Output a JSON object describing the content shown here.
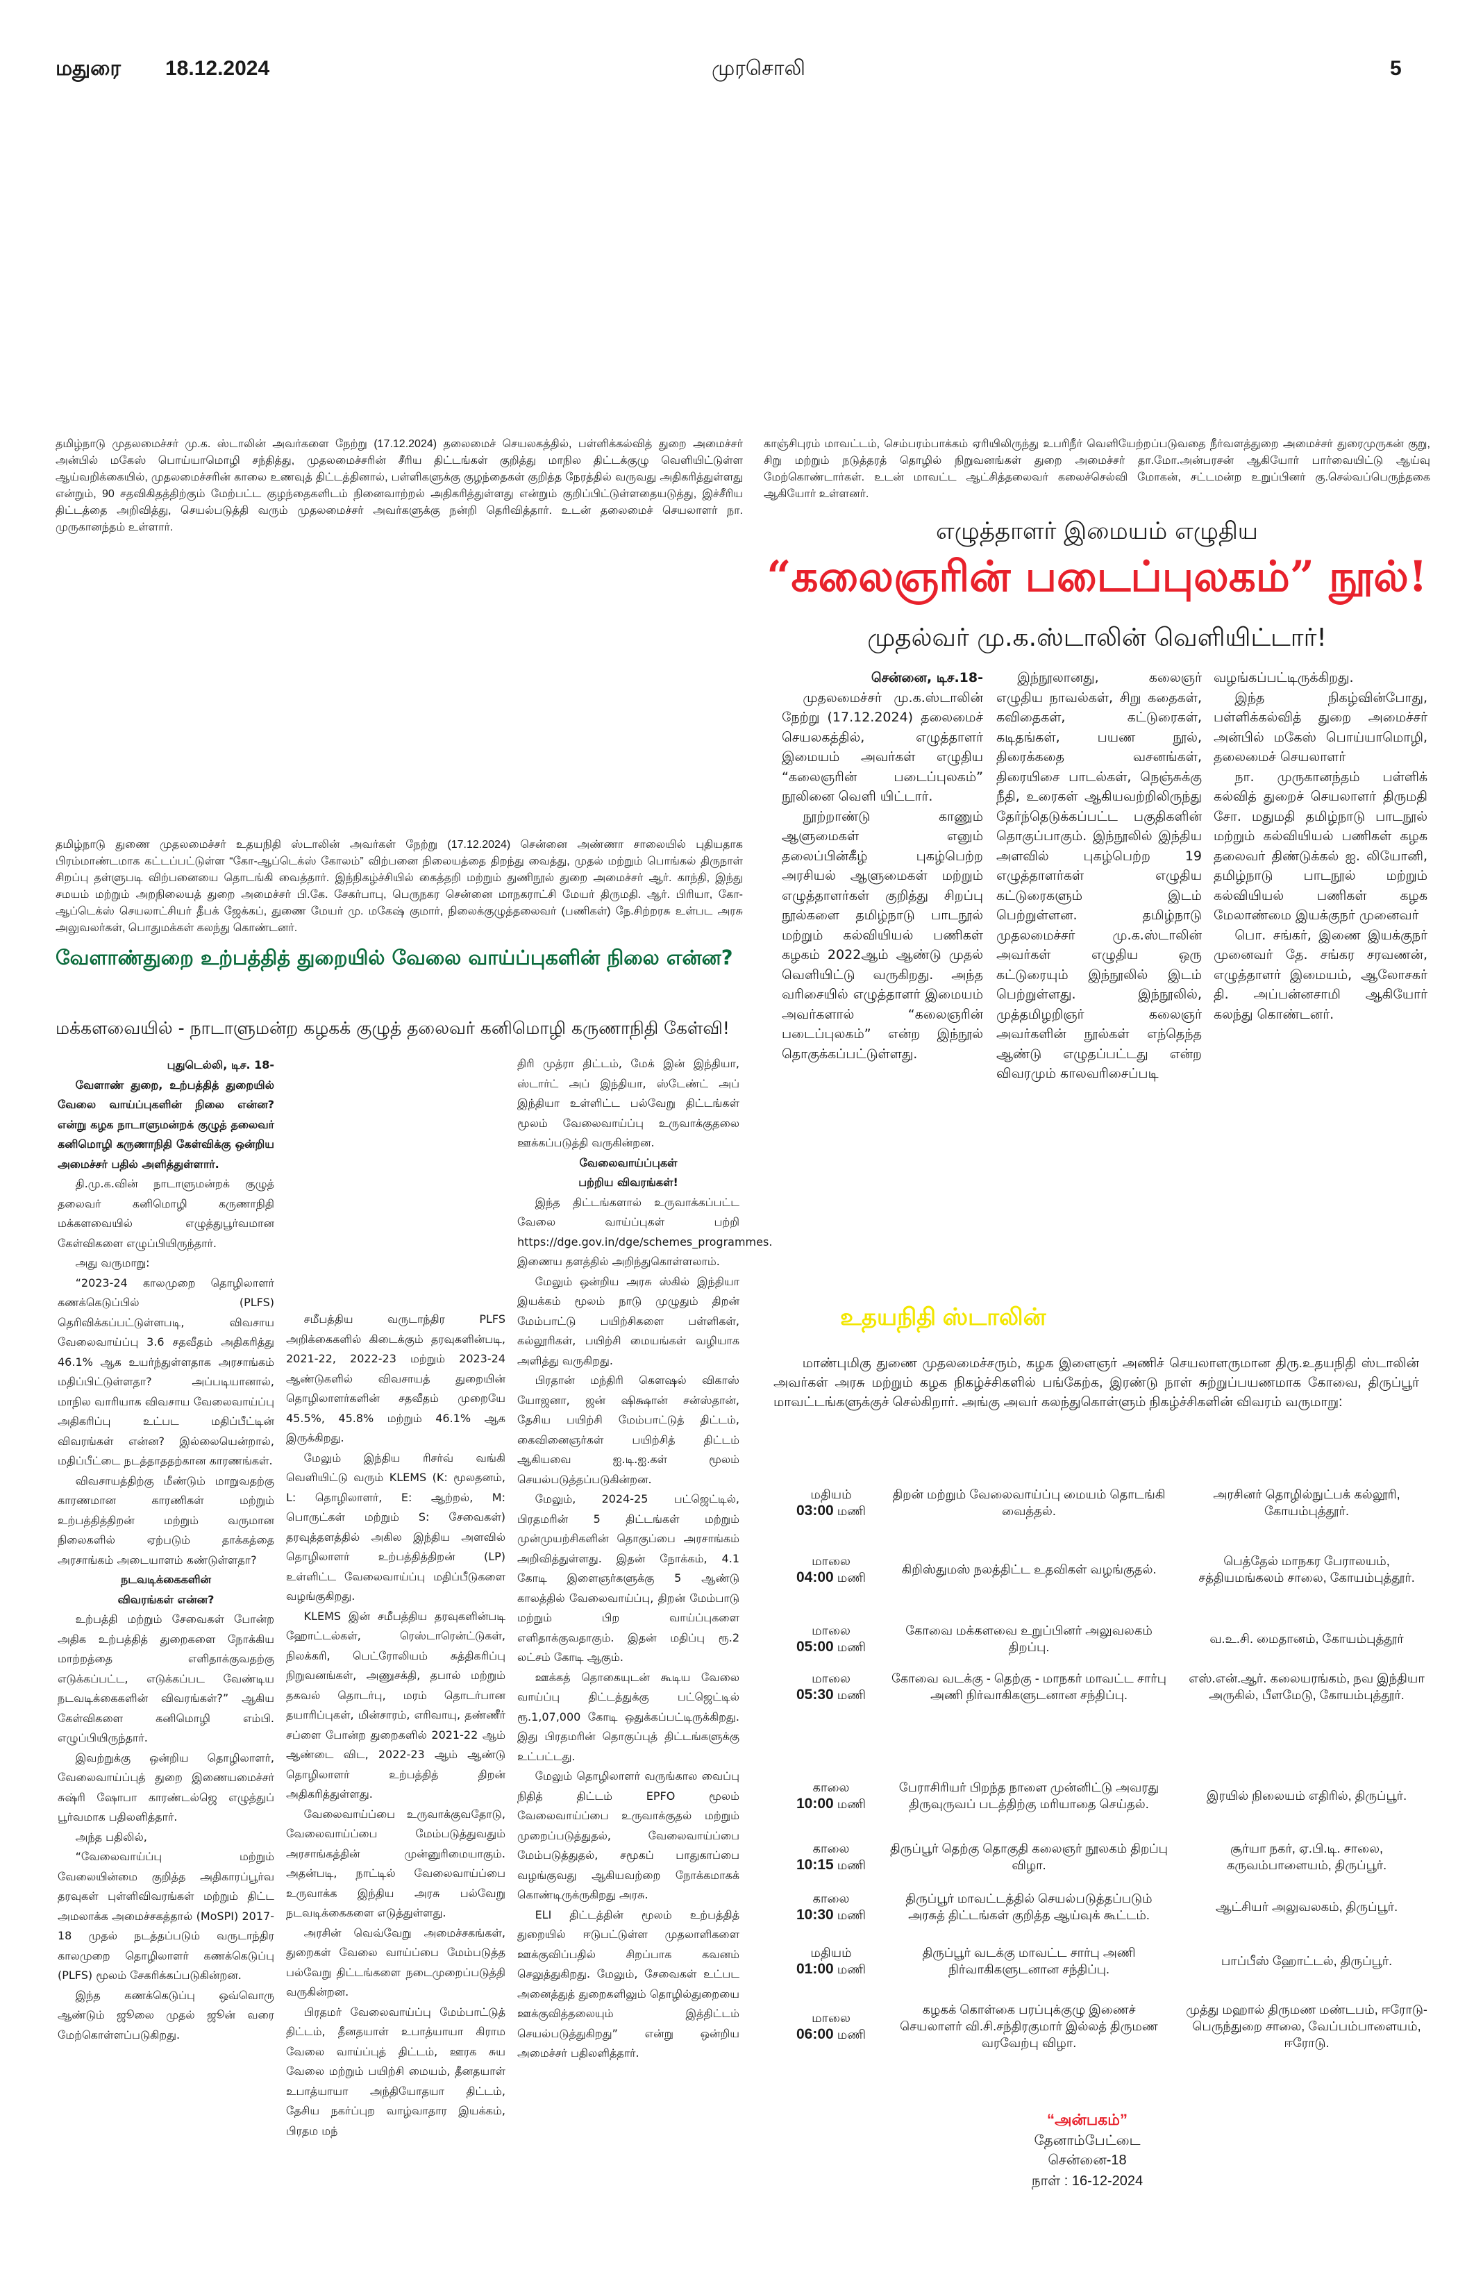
{
  "header": {
    "city": "மதுரை",
    "date": "18.12.2024",
    "masthead": "முரசொலி",
    "page_number": "5"
  },
  "colors": {
    "green_headline": "#0b6b3c",
    "red_headline": "#e8212b",
    "yellow_heading": "#f2e600"
  },
  "captions": {
    "education_minister": "தமிழ்நாடு முதலமைச்சர் மு.க. ஸ்டாலின் அவர்களை நேற்று (17.12.2024) தலைமைச் செயலகத்தில், பள்ளிக்கல்வித் துறை அமைச்சர் அன்பில் மகேஸ் பொய்யாமொழி சந்தித்து, முதலமைச்சரின் சீரிய திட்டங்கள் குறித்து மாநில திட்டக்குழு வெளியிட்டுள்ள ஆய்வறிக்கையில், முதலமைச்சரின் காலை உணவுத் திட்டத்தினால், பள்ளிகளுக்கு குழந்தைகள் குறித்த நேரத்தில் வருவது அதிகரித்துள்ளது என்றும், 90 சதவிகிதத்திற்கும் மேற்பட்ட குழந்தைகளிடம் நினைவாற்றல் அதிகரித்துள்ளது என்றும் குறிப்பிட்டுள்ளதையடுத்து, இச்சீரிய திட்டத்தை அறிவித்து, செயல்படுத்தி வரும் முதலமைச்சர் அவர்களுக்கு நன்றி தெரிவித்தார். உடன் தலைமைச் செயலாளர் நா. முருகானந்தம் உள்ளார்.",
    "chembarambakkam": "காஞ்சிபுரம் மாவட்டம், செம்பரம்பாக்கம் ஏரியிலிருந்து உபரிநீர் வெளியேற்றப்படுவதை நீர்வளத்துறை அமைச்சர் துரைமுருகன் குறு, சிறு மற்றும் நடுத்தரத் தொழில் நிறுவனங்கள் துறை அமைச்சர் தா.மோ.அன்பரசன் ஆகியோர் பார்வையிட்டு ஆய்வு மேற்கொண்டார்கள். உடன் மாவட்ட ஆட்சித்தலைவர் கலைச்செல்வி மோகன், சட்டமன்ற உறுப்பினர் கு.செல்வப்பெருந்தகை ஆகியோர் உள்ளனர்.",
    "co_optex": "தமிழ்நாடு துணை முதலமைச்சர் உதயநிதி ஸ்டாலின் அவர்கள் நேற்று (17.12.2024) சென்னை அண்ணா சாலையில் புதியதாக பிரம்மாண்டமாக கட்டப்பட்டுள்ள “கோ-ஆப்டெக்ஸ் கோலம்” விற்பனை நிலையத்தை திறந்து வைத்து, முதல் மற்றும் பொங்கல் திருநாள் சிறப்பு தள்ளுபடி விற்பனையை தொடங்கி வைத்தார். இந்நிகழ்ச்சியில் கைத்தறி மற்றும் துணிநூல் துறை அமைச்சர் ஆர். காந்தி, இந்து சமயம் மற்றும் அறநிலையத் துறை அமைச்சர் பி.கே. சேகர்பாபு, பெருநகர சென்னை மாநகராட்சி மேயர் திருமதி. ஆர். பிரியா, கோ-ஆப்டெக்ஸ் செயலாட்சியர் தீபக் ஜேக்கப், துணை மேயர் மு. மகேஷ் குமார், நிலைக்குழுத்தலைவர் (பணிகள்) நே.சிற்றரசு உள்பட அரசு அலுவலர்கள், பொதுமக்கள் கலந்து கொண்டனர்."
  },
  "book_article": {
    "kicker": "எழுத்தாளர் இமையம் எழுதிய",
    "headline": "“கலைஞரின் படைப்புலகம்” நூல்!",
    "subheadline": "முதல்வர் மு.க.ஸ்டாலின் வெளியிட்டார்!",
    "dateline": "சென்னை, டிச.18-",
    "columns": [
      [
        "முதலமைச்சர் மு.க.ஸ்டாலின் நேற்று (17.12.2024) தலைமைச் செயலகத்தில், எழுத்தாளர் இமையம் அவர்கள் எழுதிய “கலைஞரின் படைப்புலகம்” நூலினை வெளி யிட்டார்.",
        "நூற்றாண்டு காணும் ஆளுமைகள் எனும் தலைப்பின்கீழ் புகழ்பெற்ற அரசியல் ஆளுமைகள் மற்றும் எழுத்தாளர்கள் குறித்து சிறப்பு நூல்களை தமிழ்நாடு பாடநூல் மற்றும் கல்வியியல் பணிகள் கழகம் 2022ஆம் ஆண்டு முதல் வெளியிட்டு வருகிறது. அந்த வரிசையில் எழுத்தாளர் இமையம் அவர்களால் “கலைஞரின் படைப்புலகம்” என்ற இந்நூல் தொகுக்கப்பட்டுள்ளது."
      ],
      [
        "இந்நூலானது, கலைஞர் எழுதிய நாவல்கள், சிறு கதைகள், கவிதைகள், கட்டுரைகள், கடிதங்கள், பயண நூல், திரைக்கதை வசனங்கள், திரையிசை பாடல்கள், நெஞ்சுக்கு நீதி, உரைகள் ஆகியவற்றிலிருந்து தேர்ந்தெடுக்கப்பட்ட பகுதிகளின் தொகுப்பாகும். இந்நூலில் இந்திய அளவில் புகழ்பெற்ற 19 எழுத்தாளர்கள் எழுதிய கட்டுரைகளும் இடம் பெற்றுள்ளன. தமிழ்நாடு முதலமைச்சர் மு.க.ஸ்டாலின் அவர்கள் எழுதிய ஒரு கட்டுரையும் இந்நூலில் இடம் பெற்றுள்ளது. இந்நூலில், முத்தமிழறிஞர் கலைஞர் அவர்களின் நூல்கள் எந்தெந்த ஆண்டு எழுதப்பட்டது என்ற விவரமும் காலவரிசைப்படி"
      ],
      [
        "வழங்கப்பட்டிருக்கிறது.",
        "இந்த நிகழ்வின்போது, பள்ளிக்கல்வித் துறை அமைச்சர் அன்பில் மகேஸ் பொய்யாமொழி, தலைமைச் செயலாளர்",
        "நா. முருகானந்தம் பள்ளிக் கல்வித் துறைச் செயலாளர் திருமதி சோ. மதுமதி தமிழ்நாடு பாடநூல் மற்றும் கல்வியியல் பணிகள் கழக தலைவர் திண்டுக்கல் ஐ. லியோனி, தமிழ்நாடு பாடநூல் மற்றும் கல்வியியல் பணிகள் கழக மேலாண்மை இயக்குநர் முனைவர்",
        "பொ. சங்கர், இணை இயக்குநர் முனைவர் தே. சங்கர சரவணன், எழுத்தாளர் இமையம், ஆலோசகர் தி. அப்பன்னசாமி ஆகியோர் கலந்து கொண்டனர்."
      ]
    ]
  },
  "employment_article": {
    "headline": "வேளாண்துறை உற்பத்தித் துறையில் வேலை வாய்ப்புகளின் நிலை என்ன?",
    "subheadline": "மக்களவையில் - நாடாளுமன்ற கழகக் குழுத் தலைவர் கனிமொழி கருணாநிதி கேள்வி!",
    "columns": [
      [
        {
          "type": "dateline",
          "text": "புதுடெல்லி, டிச. 18-"
        },
        {
          "type": "lead",
          "text": "வேளாண் துறை, உற்பத்தித் துறையில் வேலை வாய்ப்புகளின் நிலை என்ன? என்று கழக நாடாளுமன்றக் குழுத் தலைவர் கனிமொழி கருணாநிதி கேள்விக்கு ஒன்றிய அமைச்சர் பதில் அளித்துள்ளார்."
        },
        {
          "type": "p",
          "text": "தி.மு.க.வின் நாடாளுமன்றக் குழுத் தலைவர் கனிமொழி கருணாநிதி மக்களவையில் எழுத்துபூர்வமான கேள்விகளை எழுப்பியிருந்தார்."
        },
        {
          "type": "p",
          "text": "அது வருமாறு:"
        },
        {
          "type": "p",
          "text": "“2023-24 காலமுறை தொழிலாளர் கணக்கெடுப்பில் (PLFS) தெரிவிக்கப்பட்டுள்ளபடி, விவசாய வேலைவாய்ப்பு 3.6 சதவீதம் அதிகரித்து 46.1% ஆக உயர்ந்துள்ளதாக அரசாங்கம் மதிப்பிட்டுள்ளதா? அப்படியானால், மாநில வாரியாக விவசாய வேலைவாய்ப்பு அதிகரிப்பு உட்பட மதிப்பீட்டின் விவரங்கள் என்ன? இல்லையென்றால், மதிப்பீட்டை நடத்தாததற்கான காரணங்கள்."
        },
        {
          "type": "p",
          "text": "விவசாயத்திற்கு மீண்டும் மாறுவதற்கு காரணமான காரணிகள் மற்றும் உற்பத்தித்திறன் மற்றும் வருமான நிலைகளில் ஏற்படும் தாக்கத்தை அரசாங்கம் அடையாளம் கண்டுள்ளதா?"
        },
        {
          "type": "sub",
          "text": "நடவடிக்கைகளின்"
        },
        {
          "type": "sub",
          "text": "விவரங்கள் என்ன?"
        },
        {
          "type": "p",
          "text": "உற்பத்தி மற்றும் சேவைகள் போன்ற அதிக உற்பத்தித் துறைகளை நோக்கிய மாற்றத்தை எளிதாக்குவதற்கு எடுக்கப்பட்ட, எடுக்கப்பட வேண்டிய நடவடிக்கைகளின் விவரங்கள்?” ஆகிய கேள்விகளை கனிமொழி எம்பி. எழுப்பியிருந்தார்."
        },
        {
          "type": "p",
          "text": "இவற்றுக்கு ஒன்றிய தொழிலாளர், வேலைவாய்ப்புத் துறை இணையமைச்சர் சுஷ்ரி ஷோபா காரண்டல்ஜெ எழுத்துப் பூர்வமாக பதிலளித்தார்."
        },
        {
          "type": "p",
          "text": "அந்த பதிலில்,"
        },
        {
          "type": "p",
          "text": "“வேலைவாய்ப்பு மற்றும் வேலையின்மை குறித்த அதிகாரப்பூர்வ தரவுகள் புள்ளிவிவரங்கள் மற்றும் திட்ட அமலாக்க அமைச்சகத்தால் (MoSPI) 2017-18 முதல் நடத்தப்படும் வருடாந்திர காலமுறை தொழிலாளர் கணக்கெடுப்பு (PLFS) மூலம் சேகரிக்கப்படுகின்றன."
        },
        {
          "type": "p",
          "text": "இந்த கணக்கெடுப்பு ஒவ்வொரு ஆண்டும் ஜூலை முதல் ஜூன் வரை மேற்கொள்ளப்படுகிறது."
        }
      ],
      [
        {
          "type": "p",
          "text": "சமீபத்திய வருடாந்திர PLFS அறிக்கைகளில் கிடைக்கும் தரவுகளின்படி, 2021-22, 2022-23 மற்றும் 2023-24 ஆண்டுகளில் விவசாயத் துறையின் தொழிலாளர்களின் சதவீதம் முறையே 45.5%, 45.8% மற்றும் 46.1% ஆக இருக்கிறது."
        },
        {
          "type": "p",
          "text": "மேலும் இந்திய ரிசர்வ் வங்கி வெளியிட்டு வரும் KLEMS (K: மூலதனம், L: தொழிலாளர், E: ஆற்றல், M: பொருட்கள் மற்றும் S: சேவைகள்) தரவுத்தளத்தில் அகில இந்திய அளவில் தொழிலாளர் உற்பத்தித்திறன் (LP) உள்ளிட்ட வேலைவாய்ப்பு மதிப்பீடுகளை வழங்குகிறது."
        },
        {
          "type": "p",
          "text": "KLEMS இன் சமீபத்திய தரவுகளின்படி ஹோட்டல்கள், ரெஸ்டாரென்ட்டுகள், நிலக்கரி, பெட்ரோலியம் சுத்திகரிப்பு நிறுவனங்கள், அணுசக்தி, தபால் மற்றும் தகவல் தொடர்பு, மரம் தொடர்பான தயாரிப்புகள், மின்சாரம், எரிவாயு, தண்ணீர் சப்ளை போன்ற துறைகளில் 2021-22 ஆம் ஆண்டை விட, 2022-23 ஆம் ஆண்டு தொழிலாளர் உற்பத்தித் திறன் அதிகரித்துள்ளது."
        },
        {
          "type": "p",
          "text": "வேலைவாய்ப்பை உருவாக்குவதோடு, வேலைவாய்ப்பை மேம்படுத்துவதும் அரசாங்கத்தின் முன்னுரிமையாகும். அதன்படி, நாட்டில் வேலைவாய்ப்பை உருவாக்க இந்திய அரசு பல்வேறு நடவடிக்கைகளை எடுத்துள்ளது."
        },
        {
          "type": "p",
          "text": "அரசின் வெவ்வேறு அமைச்சகங்கள், துறைகள் வேலை வாய்ப்பை மேம்படுத்த பல்வேறு திட்டங்களை நடைமுறைப்படுத்தி வருகின்றன."
        },
        {
          "type": "p",
          "text": "பிரதமர் வேலைவாய்ப்பு மேம்பாட்டுத் திட்டம், தீனதயாள் உபாத்யாயா கிராம வேலை வாய்ப்புத் திட்டம், ஊரக சுய வேலை மற்றும் பயிற்சி மையம், தீனதயாள் உபாத்யாயா அந்தியோதயா திட்டம், தேசிய நகர்ப்புற வாழ்வாதார இயக்கம், பிரதம மந்"
        }
      ],
      [
        {
          "type": "cont",
          "text": "திரி முத்ரா திட்டம், மேக் இன் இந்தியா, ஸ்டார்ட் அப் இந்தியா, ஸ்டேண்ட் அப் இந்தியா உள்ளிட்ட பல்வேறு திட்டங்கள் மூலம் வேலைவாய்ப்பு உருவாக்குதலை ஊக்கப்படுத்தி வருகின்றன."
        },
        {
          "type": "sub",
          "text": "வேலைவாய்ப்புகள்"
        },
        {
          "type": "sub",
          "text": "பற்றிய விவரங்கள்!"
        },
        {
          "type": "p",
          "text": "இந்த திட்டங்களால் உருவாக்கப்பட்ட வேலை வாய்ப்புகள் பற்றி https://dge.gov.in/dge/schemes_programmes. இணைய தளத்தில் அறிந்துகொள்ளலாம்."
        },
        {
          "type": "p",
          "text": "மேலும் ஒன்றிய அரசு ஸ்கில் இந்தியா இயக்கம் மூலம் நாடு முழுதும் திறன் மேம்பாட்டு பயிற்சிகளை பள்ளிகள், கல்லூரிகள், பயிற்சி மையங்கள் வழியாக அளித்து வருகிறது."
        },
        {
          "type": "p",
          "text": "பிரதான் மந்திரி கௌஷல் விகாஸ் யோஜனா, ஜன் ஷிக்ஷான் சன்ஸ்தான், தேசிய பயிற்சி மேம்பாட்டுத் திட்டம், கைவினைஞர்கள் பயிற்சித் திட்டம் ஆகியவை ஐ.டி.ஐ.கள் மூலம் செயல்படுத்தப்படுகின்றன."
        },
        {
          "type": "p",
          "text": "மேலும், 2024-25 பட்ஜெட்டில், பிரதமரின் 5 திட்டங்கள் மற்றும் முன்முயற்சிகளின் தொகுப்பை அரசாங்கம் அறிவித்துள்ளது. இதன் நோக்கம், 4.1 கோடி இளைஞர்களுக்கு 5 ஆண்டு காலத்தில் வேலைவாய்ப்பு, திறன் மேம்பாடு மற்றும் பிற வாய்ப்புகளை எளிதாக்குவதாகும். இதன் மதிப்பு ரூ.2 லட்சம் கோடி ஆகும்."
        },
        {
          "type": "p",
          "text": "ஊக்கத் தொகையுடன் கூடிய வேலை வாய்ப்பு திட்டத்துக்கு பட்ஜெட்டில் ரூ.1,07,000 கோடி ஒதுக்கப்பட்டிருக்கிறது. இது பிரதமரின் தொகுப்புத் திட்டங்களுக்கு உட்பட்டது."
        },
        {
          "type": "p",
          "text": "மேலும் தொழிலாளர் வருங்கால வைப்பு நிதித் திட்டம் EPFO மூலம் வேலைவாய்ப்பை உருவாக்குதல் மற்றும் முறைப்படுத்துதல், வேலைவாய்ப்பை மேம்படுத்துதல், சமூகப் பாதுகாப்பை வழங்குவது ஆகியவற்றை நோக்கமாகக் கொண்டிருக்ருகிறது அரசு."
        },
        {
          "type": "p",
          "text": "ELI திட்டத்தின் மூலம் உற்பத்தித் துறையில் ஈடுபட்டுள்ள முதலாளிகளை ஊக்குவிப்பதில் சிறப்பாக கவனம் செலுத்துகிறது. மேலும், சேவைகள் உட்பட அனைத்துத் துறைகளிலும் தொழில்துறையை ஊக்குவித்தலையும் இத்திட்டம் செயல்படுத்துகிறது” என்று ஒன்றிய அமைச்சர் பதிலளித்தார்."
        }
      ]
    ]
  },
  "schedule": {
    "heading": "உதயநிதி ஸ்டாலின்",
    "intro": "மாண்புமிகு துணை முதலமைச்சரும், கழக இளைஞர் அணிச் செயலாளருமான திரு.உதயநிதி ஸ்டாலின் அவர்கள் அரசு மற்றும் கழக நிகழ்ச்சிகளில் பங்கேற்க, இரண்டு நாள் சுற்றுப்பயணமாக கோவை, திருப்பூர் மாவட்டங்களுக்குச் செல்கிறார். அங்கு அவர் கலந்துகொள்ளும் நிகழ்ச்சிகளின் விவரம் வருமாறு:",
    "rows": [
      {
        "period": "மதியம்",
        "time": "03:00",
        "unit": "மணி",
        "event": "திறன் மற்றும் வேலைவாய்ப்பு மையம் தொடங்கி வைத்தல்.",
        "venue": "அரசினர் தொழில்நுட்பக் கல்லூரி, கோயம்புத்தூர்."
      },
      {
        "period": "மாலை",
        "time": "04:00",
        "unit": "மணி",
        "event": "கிறிஸ்துமஸ் நலத்திட்ட உதவிகள் வழங்குதல்.",
        "venue": "பெத்தேல் மாநகர பேராலயம், சத்தியமங்கலம் சாலை, கோயம்புத்தூர்."
      },
      {
        "period": "மாலை",
        "time": "05:00",
        "unit": "மணி",
        "event": "கோவை மக்களவை உறுப்பினர் அலுவலகம் திறப்பு.",
        "venue": "வ.உ.சி. மைதானம், கோயம்புத்தூர்"
      },
      {
        "period": "மாலை",
        "time": "05:30",
        "unit": "மணி",
        "event": "கோவை வடக்கு - தெற்கு - மாநகர் மாவட்ட சார்பு அணி நிர்வாகிகளுடனான சந்திப்பு.",
        "venue": "எஸ்.என்.ஆர். கலையரங்கம், நவ இந்தியா அருகில், பீளமேடு, கோயம்புத்தூர்."
      },
      {
        "period": "காலை",
        "time": "10:00",
        "unit": "மணி",
        "event": "பேராசிரியர் பிறந்த நாளை முன்னிட்டு அவரது திருவுருவப் படத்திற்கு மரியாதை செய்தல்.",
        "venue": "இரயில் நிலையம் எதிரில், திருப்பூர்."
      },
      {
        "period": "காலை",
        "time": "10:15",
        "unit": "மணி",
        "event": "திருப்பூர் தெற்கு தொகுதி கலைஞர் நூலகம் திறப்பு விழா.",
        "venue": "சூர்யா நகர், ஏ.பி.டி. சாலை, கருவம்பாளையம், திருப்பூர்."
      },
      {
        "period": "காலை",
        "time": "10:30",
        "unit": "மணி",
        "event": "திருப்பூர் மாவட்டத்தில் செயல்படுத்தப்படும் அரசுத் திட்டங்கள் குறித்த ஆய்வுக் கூட்டம்.",
        "venue": "ஆட்சியர் அலுவலகம், திருப்பூர்."
      },
      {
        "period": "மதியம்",
        "time": "01:00",
        "unit": "மணி",
        "event": "திருப்பூர் வடக்கு மாவட்ட சார்பு அணி நிர்வாகிகளுடனான சந்திப்பு.",
        "venue": "பாப்பீஸ் ஹோட்டல், திருப்பூர்."
      },
      {
        "period": "மாலை",
        "time": "06:00",
        "unit": "மணி",
        "event": "கழகக் கொள்கை பரப்புக்குழு இணைச் செயலாளர் வி.சி.சந்திரகுமார் இல்லத் திருமண வரவேற்பு விழா.",
        "venue": "முத்து மஹால் திருமண மண்டபம், ஈரோடு-பெருந்துறை சாலை, வேப்பம்பாளையம், ஈரோடு."
      }
    ],
    "footer": {
      "office": "“அன்பகம்”",
      "area": "தேனாம்பேட்டை",
      "city": "சென்னை-18",
      "date_label": "நாள் :",
      "date": "16-12-2024"
    }
  }
}
